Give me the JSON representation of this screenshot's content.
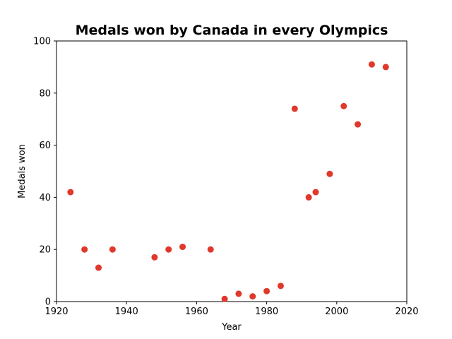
{
  "chart_data": {
    "type": "scatter",
    "title": "Medals won by Canada in every Olympics",
    "xlabel": "Year",
    "ylabel": "Medals won",
    "xlim": [
      1920,
      2020
    ],
    "ylim": [
      0,
      100
    ],
    "xticks": [
      "1920",
      "1940",
      "1960",
      "1980",
      "2000",
      "2020"
    ],
    "yticks": [
      "0",
      "20",
      "40",
      "60",
      "80",
      "100"
    ],
    "grid": false,
    "marker_color": "#e0382b",
    "x": [
      1924,
      1928,
      1932,
      1936,
      1948,
      1952,
      1956,
      1964,
      1968,
      1972,
      1976,
      1980,
      1984,
      1988,
      1992,
      1994,
      1998,
      2002,
      2006,
      2010,
      2014
    ],
    "y": [
      42,
      20,
      13,
      20,
      17,
      20,
      21,
      20,
      1,
      3,
      2,
      4,
      6,
      74,
      40,
      42,
      49,
      75,
      68,
      91,
      90
    ]
  }
}
